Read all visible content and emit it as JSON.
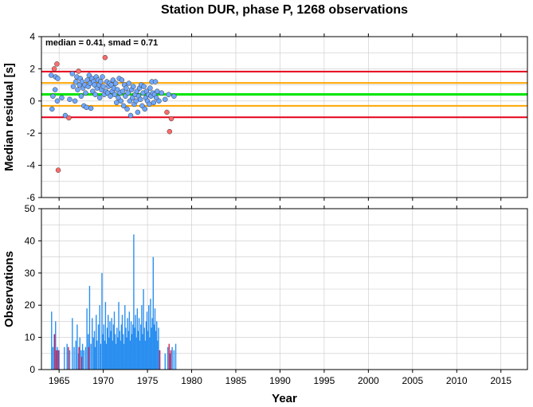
{
  "chart_data": [
    {
      "type": "scatter",
      "title": "Station DUR, phase P, 1268 observations",
      "ylabel": "Median residual [s]",
      "annotation": "median = 0.41, smad = 0.71",
      "xlim": [
        1963,
        2018
      ],
      "ylim": [
        -6,
        4
      ],
      "yticks": [
        -6,
        -4,
        -2,
        0,
        2,
        4
      ],
      "xticks": [
        1965,
        1970,
        1975,
        1980,
        1985,
        1990,
        1995,
        2000,
        2005,
        2010,
        2015
      ],
      "grid": true,
      "reference_lines": [
        {
          "name": "median",
          "y": 0.41,
          "color": "#00e600"
        },
        {
          "name": "median + 1 smad",
          "y": 1.12,
          "color": "#ffa500"
        },
        {
          "name": "median - 1 smad",
          "y": -0.3,
          "color": "#ffa500"
        },
        {
          "name": "median + 2 smad",
          "y": 1.83,
          "color": "#e6001a"
        },
        {
          "name": "median - 2 smad",
          "y": -1.01,
          "color": "#e6001a"
        }
      ],
      "colors": {
        "normal": "#6fa8ff",
        "outlier": "#ff6b6b"
      },
      "points": [
        {
          "x": 1964.1,
          "y": 1.6
        },
        {
          "x": 1964.2,
          "y": -0.5
        },
        {
          "x": 1964.3,
          "y": 0.3
        },
        {
          "x": 1964.45,
          "y": 2.0,
          "outlier": true
        },
        {
          "x": 1964.55,
          "y": 0.7
        },
        {
          "x": 1964.6,
          "y": 1.5
        },
        {
          "x": 1964.75,
          "y": 2.3,
          "outlier": true
        },
        {
          "x": 1964.8,
          "y": 0.0
        },
        {
          "x": 1964.85,
          "y": 1.4
        },
        {
          "x": 1964.9,
          "y": -4.3,
          "outlier": true
        },
        {
          "x": 1965.3,
          "y": 0.2
        },
        {
          "x": 1965.7,
          "y": -0.9
        },
        {
          "x": 1966.1,
          "y": -1.05,
          "outlier": true
        },
        {
          "x": 1966.2,
          "y": 0.1
        },
        {
          "x": 1966.5,
          "y": 1.7
        },
        {
          "x": 1966.6,
          "y": 0.9
        },
        {
          "x": 1966.8,
          "y": 0.0
        },
        {
          "x": 1966.9,
          "y": 1.2
        },
        {
          "x": 1967.0,
          "y": 1.5
        },
        {
          "x": 1967.1,
          "y": 0.7
        },
        {
          "x": 1967.2,
          "y": 1.85,
          "outlier": true
        },
        {
          "x": 1967.3,
          "y": 1.0
        },
        {
          "x": 1967.4,
          "y": 1.4
        },
        {
          "x": 1967.5,
          "y": 0.3
        },
        {
          "x": 1967.6,
          "y": 1.2
        },
        {
          "x": 1967.7,
          "y": 0.8
        },
        {
          "x": 1967.8,
          "y": -0.3
        },
        {
          "x": 1967.9,
          "y": 1.0
        },
        {
          "x": 1968.0,
          "y": 0.5
        },
        {
          "x": 1968.1,
          "y": -0.4
        },
        {
          "x": 1968.2,
          "y": 1.3
        },
        {
          "x": 1968.3,
          "y": 0.9
        },
        {
          "x": 1968.4,
          "y": 1.6
        },
        {
          "x": 1968.5,
          "y": 1.1
        },
        {
          "x": 1968.6,
          "y": -0.45
        },
        {
          "x": 1968.7,
          "y": 1.4
        },
        {
          "x": 1968.8,
          "y": 0.6
        },
        {
          "x": 1968.9,
          "y": 1.2
        },
        {
          "x": 1969.0,
          "y": 1.0
        },
        {
          "x": 1969.1,
          "y": 0.4
        },
        {
          "x": 1969.2,
          "y": 1.5
        },
        {
          "x": 1969.3,
          "y": 0.8
        },
        {
          "x": 1969.4,
          "y": 1.3
        },
        {
          "x": 1969.5,
          "y": 1.0
        },
        {
          "x": 1969.6,
          "y": 0.2
        },
        {
          "x": 1969.7,
          "y": 1.2
        },
        {
          "x": 1969.8,
          "y": 0.7
        },
        {
          "x": 1969.9,
          "y": 1.5
        },
        {
          "x": 1970.0,
          "y": 0.9
        },
        {
          "x": 1970.1,
          "y": 0.4
        },
        {
          "x": 1970.2,
          "y": 2.7,
          "outlier": true
        },
        {
          "x": 1970.3,
          "y": 0.6
        },
        {
          "x": 1970.4,
          "y": 1.2
        },
        {
          "x": 1970.5,
          "y": 0.5
        },
        {
          "x": 1970.6,
          "y": 0.9
        },
        {
          "x": 1970.7,
          "y": 1.1
        },
        {
          "x": 1970.8,
          "y": 0.3
        },
        {
          "x": 1970.9,
          "y": 1.0
        },
        {
          "x": 1971.0,
          "y": 0.6
        },
        {
          "x": 1971.1,
          "y": 1.3
        },
        {
          "x": 1971.2,
          "y": 0.8
        },
        {
          "x": 1971.3,
          "y": 0.4
        },
        {
          "x": 1971.4,
          "y": 1.1
        },
        {
          "x": 1971.5,
          "y": -0.1
        },
        {
          "x": 1971.6,
          "y": 0.7
        },
        {
          "x": 1971.7,
          "y": 0.2
        },
        {
          "x": 1971.8,
          "y": 1.4
        },
        {
          "x": 1971.9,
          "y": 0.5
        },
        {
          "x": 1972.0,
          "y": 0.0
        },
        {
          "x": 1972.1,
          "y": 1.3
        },
        {
          "x": 1972.2,
          "y": 0.6
        },
        {
          "x": 1972.3,
          "y": -0.3
        },
        {
          "x": 1972.4,
          "y": 1.0
        },
        {
          "x": 1972.5,
          "y": 0.3
        },
        {
          "x": 1972.6,
          "y": 0.8
        },
        {
          "x": 1972.7,
          "y": -0.5
        },
        {
          "x": 1972.8,
          "y": 0.5
        },
        {
          "x": 1972.9,
          "y": 1.1
        },
        {
          "x": 1973.0,
          "y": 0.0
        },
        {
          "x": 1973.1,
          "y": -0.9
        },
        {
          "x": 1973.2,
          "y": 0.7
        },
        {
          "x": 1973.3,
          "y": 0.2
        },
        {
          "x": 1973.4,
          "y": 0.9
        },
        {
          "x": 1973.5,
          "y": -0.2
        },
        {
          "x": 1973.6,
          "y": 0.4
        },
        {
          "x": 1973.7,
          "y": 0.0
        },
        {
          "x": 1973.8,
          "y": 0.6
        },
        {
          "x": 1973.9,
          "y": -0.7
        },
        {
          "x": 1974.0,
          "y": 0.3
        },
        {
          "x": 1974.1,
          "y": 0.8
        },
        {
          "x": 1974.2,
          "y": 0.1
        },
        {
          "x": 1974.3,
          "y": 1.0
        },
        {
          "x": 1974.4,
          "y": -0.3
        },
        {
          "x": 1974.5,
          "y": 0.5
        },
        {
          "x": 1974.6,
          "y": 0.9
        },
        {
          "x": 1974.7,
          "y": -0.5
        },
        {
          "x": 1974.8,
          "y": 0.2
        },
        {
          "x": 1974.9,
          "y": 0.6
        },
        {
          "x": 1975.0,
          "y": 0.0
        },
        {
          "x": 1975.1,
          "y": 0.4
        },
        {
          "x": 1975.2,
          "y": -0.2
        },
        {
          "x": 1975.3,
          "y": 0.8
        },
        {
          "x": 1975.4,
          "y": 0.3
        },
        {
          "x": 1975.5,
          "y": 1.2
        },
        {
          "x": 1975.6,
          "y": 0.5
        },
        {
          "x": 1975.7,
          "y": -0.1
        },
        {
          "x": 1975.8,
          "y": 0.4
        },
        {
          "x": 1975.9,
          "y": 1.2
        },
        {
          "x": 1976.0,
          "y": 0.2
        },
        {
          "x": 1976.1,
          "y": 0.6
        },
        {
          "x": 1976.3,
          "y": 0.0
        },
        {
          "x": 1976.6,
          "y": 0.5
        },
        {
          "x": 1977.0,
          "y": 0.1
        },
        {
          "x": 1977.2,
          "y": -0.7,
          "outlier": true
        },
        {
          "x": 1977.4,
          "y": 0.4
        },
        {
          "x": 1977.5,
          "y": -1.9,
          "outlier": true
        },
        {
          "x": 1977.7,
          "y": -1.1,
          "outlier": true
        },
        {
          "x": 1978.0,
          "y": 0.3
        }
      ]
    },
    {
      "type": "bar",
      "ylabel": "Observations",
      "xlabel": "Year",
      "xlim": [
        1963,
        2018
      ],
      "ylim": [
        0,
        50
      ],
      "yticks": [
        0,
        10,
        20,
        30,
        40,
        50
      ],
      "xticks": [
        1965,
        1970,
        1975,
        1980,
        1985,
        1990,
        1995,
        2000,
        2005,
        2010,
        2015
      ],
      "grid": true,
      "colors": {
        "normal": "#2b8ff0",
        "outlier": "#d62050"
      },
      "series": [
        {
          "color": "#2b8ff0",
          "points": [
            [
              1964.15,
              18
            ],
            [
              1964.3,
              7
            ],
            [
              1964.45,
              11
            ],
            [
              1964.6,
              15
            ],
            [
              1964.8,
              7
            ],
            [
              1965.0,
              6
            ],
            [
              1965.6,
              7
            ],
            [
              1965.9,
              8
            ],
            [
              1966.2,
              6
            ],
            [
              1966.5,
              16
            ],
            [
              1966.7,
              7
            ],
            [
              1966.9,
              9
            ],
            [
              1967.05,
              14
            ],
            [
              1967.2,
              5
            ],
            [
              1967.35,
              10
            ],
            [
              1967.5,
              6
            ],
            [
              1967.65,
              8
            ],
            [
              1967.8,
              6
            ],
            [
              1968.0,
              7
            ],
            [
              1968.15,
              19
            ],
            [
              1968.3,
              11
            ],
            [
              1968.45,
              26
            ],
            [
              1968.6,
              8
            ],
            [
              1968.75,
              16
            ],
            [
              1968.9,
              10
            ],
            [
              1969.0,
              12
            ],
            [
              1969.1,
              7
            ],
            [
              1969.2,
              17
            ],
            [
              1969.3,
              9
            ],
            [
              1969.45,
              14
            ],
            [
              1969.6,
              20
            ],
            [
              1969.7,
              8
            ],
            [
              1969.85,
              30
            ],
            [
              1969.95,
              11
            ],
            [
              1970.05,
              14
            ],
            [
              1970.15,
              9
            ],
            [
              1970.25,
              21
            ],
            [
              1970.35,
              8
            ],
            [
              1970.45,
              13
            ],
            [
              1970.55,
              17
            ],
            [
              1970.65,
              10
            ],
            [
              1970.75,
              15
            ],
            [
              1970.85,
              12
            ],
            [
              1970.95,
              16
            ],
            [
              1971.05,
              9
            ],
            [
              1971.15,
              14
            ],
            [
              1971.25,
              18
            ],
            [
              1971.35,
              11
            ],
            [
              1971.45,
              8
            ],
            [
              1971.55,
              13
            ],
            [
              1971.65,
              10
            ],
            [
              1971.75,
              21
            ],
            [
              1971.85,
              12
            ],
            [
              1971.95,
              9
            ],
            [
              1972.05,
              14
            ],
            [
              1972.15,
              17
            ],
            [
              1972.25,
              11
            ],
            [
              1972.35,
              8
            ],
            [
              1972.45,
              20
            ],
            [
              1972.55,
              13
            ],
            [
              1972.65,
              10
            ],
            [
              1972.75,
              16
            ],
            [
              1972.85,
              12
            ],
            [
              1972.95,
              18
            ],
            [
              1973.05,
              9
            ],
            [
              1973.15,
              15
            ],
            [
              1973.25,
              11
            ],
            [
              1973.35,
              14
            ],
            [
              1973.45,
              42
            ],
            [
              1973.55,
              13
            ],
            [
              1973.65,
              17
            ],
            [
              1973.75,
              10
            ],
            [
              1973.85,
              19
            ],
            [
              1973.95,
              12
            ],
            [
              1974.05,
              16
            ],
            [
              1974.15,
              9
            ],
            [
              1974.25,
              14
            ],
            [
              1974.35,
              20
            ],
            [
              1974.45,
              11
            ],
            [
              1974.55,
              25
            ],
            [
              1974.65,
              13
            ],
            [
              1974.75,
              9
            ],
            [
              1974.85,
              15
            ],
            [
              1974.95,
              18
            ],
            [
              1975.05,
              12
            ],
            [
              1975.15,
              20
            ],
            [
              1975.25,
              10
            ],
            [
              1975.35,
              22
            ],
            [
              1975.45,
              13
            ],
            [
              1975.55,
              16
            ],
            [
              1975.65,
              35
            ],
            [
              1975.75,
              14
            ],
            [
              1975.85,
              19
            ],
            [
              1975.95,
              12
            ],
            [
              1976.05,
              15
            ],
            [
              1976.15,
              9
            ],
            [
              1976.25,
              13
            ],
            [
              1976.35,
              6
            ],
            [
              1977.0,
              5
            ],
            [
              1977.3,
              7
            ],
            [
              1977.55,
              5
            ],
            [
              1977.8,
              7
            ],
            [
              1978.0,
              6
            ],
            [
              1978.2,
              8
            ]
          ]
        },
        {
          "color": "#d62050",
          "points": [
            [
              1964.5,
              11
            ],
            [
              1964.7,
              6
            ],
            [
              1964.9,
              6
            ],
            [
              1966.05,
              7
            ],
            [
              1967.25,
              7
            ],
            [
              1967.55,
              4
            ],
            [
              1968.35,
              7
            ],
            [
              1976.4,
              6
            ],
            [
              1977.45,
              8
            ],
            [
              1977.65,
              6
            ]
          ]
        }
      ]
    }
  ]
}
